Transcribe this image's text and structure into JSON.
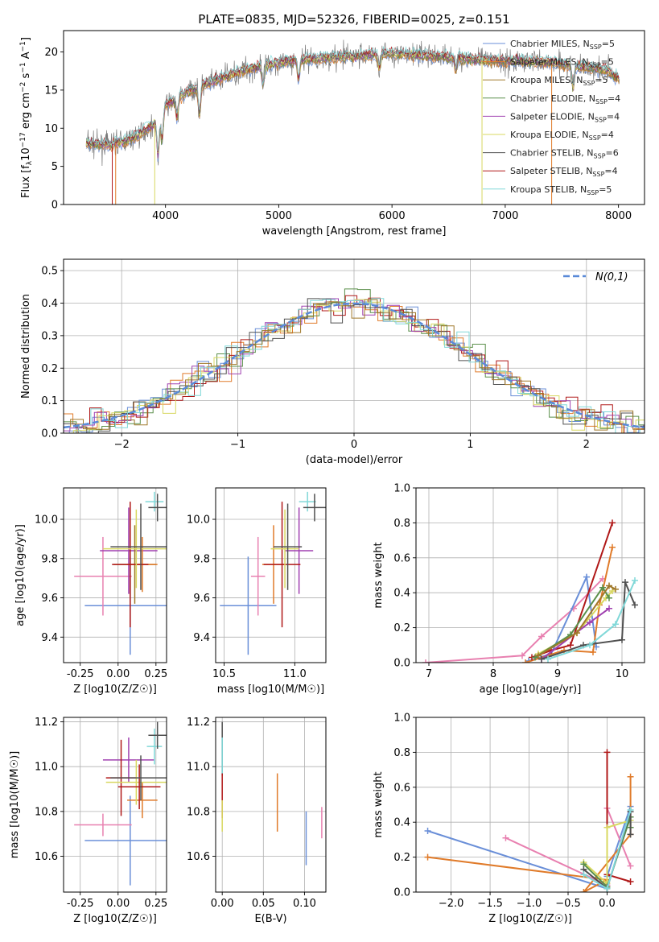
{
  "colors": [
    "#6a8fd8",
    "#e07b2a",
    "#a0782a",
    "#5a8f4a",
    "#a040b0",
    "#d8d860",
    "#505050",
    "#b01818",
    "#80d8d8",
    "#e880b0",
    "#88a8e8"
  ],
  "chart_data": [
    {
      "id": "spectrum",
      "type": "line",
      "title": "PLATE=0835, MJD=52326, FIBERID=0025, z=0.151",
      "xlabel": "wavelength [Angstrom, rest frame]",
      "ylabel": "Flux [f_λ 10^-17 erg cm^-2 s^-1 A^-1]",
      "xlim": [
        3100,
        8230
      ],
      "ylim": [
        0,
        22.8
      ],
      "xticks": [
        4000,
        5000,
        6000,
        7000,
        8000
      ],
      "yticks": [
        0,
        5,
        10,
        15,
        20
      ],
      "grid": false,
      "legend_position": "top-right",
      "series": [
        {
          "name": "Chabrier MILES, N_SSP=5",
          "color": "#6a8fd8"
        },
        {
          "name": "Salpeter MILES, N_SSP=5",
          "color": "#e07b2a"
        },
        {
          "name": "Kroupa MILES, N_SSP=5",
          "color": "#a0782a"
        },
        {
          "name": "Chabrier ELODIE, N_SSP=4",
          "color": "#5a8f4a"
        },
        {
          "name": "Salpeter ELODIE, N_SSP=4",
          "color": "#a040b0"
        },
        {
          "name": "Kroupa ELODIE, N_SSP=4",
          "color": "#d8d860"
        },
        {
          "name": "Chabrier STELIB, N_SSP=6",
          "color": "#505050"
        },
        {
          "name": "Salpeter STELIB, N_SSP=4",
          "color": "#b01818"
        },
        {
          "name": "Kroupa STELIB, N_SSP=5",
          "color": "#80d8d8"
        }
      ],
      "continuum": {
        "x": [
          3300,
          3500,
          3700,
          3900,
          4000,
          4200,
          4400,
          4600,
          4800,
          5000,
          5200,
          5500,
          5800,
          6000,
          6300,
          6600,
          6900,
          7200,
          7500,
          7700,
          7900,
          8000
        ],
        "y": [
          8.0,
          7.8,
          8.6,
          10.5,
          13.0,
          14.8,
          16.0,
          17.2,
          18.0,
          18.6,
          19.0,
          19.3,
          19.6,
          19.8,
          19.5,
          19.2,
          18.8,
          18.8,
          18.5,
          18.0,
          17.6,
          16.5
        ]
      }
    },
    {
      "id": "residuals",
      "type": "step",
      "xlabel": "(data-model)/error",
      "ylabel": "Normed distribution",
      "xlim": [
        -2.5,
        2.5
      ],
      "ylim": [
        0,
        0.535
      ],
      "xticks": [
        -2,
        -1,
        0,
        1,
        2
      ],
      "yticks": [
        0.0,
        0.1,
        0.2,
        0.3,
        0.4,
        0.5
      ],
      "grid": true,
      "legend": "N(0,1)",
      "legend_position": "top-right"
    },
    {
      "id": "age_vs_Z",
      "type": "scatter",
      "xlabel": "Z [log10(Z/Z☉)]",
      "ylabel": "age  [log10(age/yr)]",
      "xlim": [
        -0.36,
        0.32
      ],
      "ylim": [
        9.27,
        10.16
      ],
      "xticks": [
        -0.25,
        0.0,
        0.25
      ],
      "yticks": [
        9.4,
        9.6,
        9.8,
        10.0
      ],
      "grid": true,
      "points": [
        {
          "x": 0.08,
          "y": 9.56,
          "xerr": 0.3,
          "yerr": 0.25,
          "color": "#6a8fd8"
        },
        {
          "x": -0.1,
          "y": 9.71,
          "xerr": 0.19,
          "yerr": 0.2,
          "color": "#e880b0"
        },
        {
          "x": 0.07,
          "y": 9.84,
          "xerr": 0.19,
          "yerr": 0.22,
          "color": "#a040b0"
        },
        {
          "x": 0.11,
          "y": 9.77,
          "xerr": 0.14,
          "yerr": 0.2,
          "color": "#a0782a"
        },
        {
          "x": 0.16,
          "y": 9.77,
          "xerr": 0.1,
          "yerr": 0.14,
          "color": "#e07b2a"
        },
        {
          "x": 0.08,
          "y": 9.77,
          "xerr": 0.12,
          "yerr": 0.32,
          "color": "#b01818"
        },
        {
          "x": 0.12,
          "y": 9.85,
          "xerr": 0.22,
          "yerr": 0.2,
          "color": "#d8d860"
        },
        {
          "x": 0.15,
          "y": 9.86,
          "xerr": 0.2,
          "yerr": 0.22,
          "color": "#505050"
        },
        {
          "x": 0.24,
          "y": 10.09,
          "xerr": 0.06,
          "yerr": 0.05,
          "color": "#80d8d8"
        },
        {
          "x": 0.26,
          "y": 10.06,
          "xerr": 0.06,
          "yerr": 0.07,
          "color": "#505050"
        }
      ]
    },
    {
      "id": "age_vs_mass",
      "type": "scatter",
      "xlabel": "mass [log10(M/M☉)]",
      "ylabel": "",
      "xlim": [
        10.44,
        11.22
      ],
      "ylim": [
        9.27,
        10.16
      ],
      "xticks": [
        10.5,
        11.0
      ],
      "yticks": [
        9.4,
        9.6,
        9.8,
        10.0
      ],
      "grid": true,
      "points": [
        {
          "x": 10.67,
          "y": 9.56,
          "xerr": 0.2,
          "yerr": 0.25,
          "color": "#6a8fd8"
        },
        {
          "x": 10.74,
          "y": 9.71,
          "xerr": 0.05,
          "yerr": 0.2,
          "color": "#e880b0"
        },
        {
          "x": 11.03,
          "y": 9.84,
          "xerr": 0.1,
          "yerr": 0.22,
          "color": "#a040b0"
        },
        {
          "x": 10.85,
          "y": 9.77,
          "xerr": 0.08,
          "yerr": 0.2,
          "color": "#e07b2a"
        },
        {
          "x": 10.91,
          "y": 9.77,
          "xerr": 0.13,
          "yerr": 0.32,
          "color": "#b01818"
        },
        {
          "x": 10.93,
          "y": 9.85,
          "xerr": 0.1,
          "yerr": 0.2,
          "color": "#d8d860"
        },
        {
          "x": 10.95,
          "y": 9.86,
          "xerr": 0.1,
          "yerr": 0.22,
          "color": "#505050"
        },
        {
          "x": 11.09,
          "y": 10.09,
          "xerr": 0.06,
          "yerr": 0.05,
          "color": "#80d8d8"
        },
        {
          "x": 11.14,
          "y": 10.06,
          "xerr": 0.08,
          "yerr": 0.07,
          "color": "#505050"
        }
      ]
    },
    {
      "id": "weight_vs_age",
      "type": "line",
      "xlabel": "age  [log10(age/yr)]",
      "ylabel": "mass weight",
      "xlim": [
        6.8,
        10.35
      ],
      "ylim": [
        0,
        1.0
      ],
      "xticks": [
        7,
        8,
        9,
        10
      ],
      "yticks": [
        0.0,
        0.2,
        0.4,
        0.6,
        0.8,
        1.0
      ],
      "grid": true,
      "series": [
        {
          "color": "#e880b0",
          "x": [
            6.95,
            8.45,
            8.75,
            9.25,
            9.7
          ],
          "y": [
            0.0,
            0.04,
            0.15,
            0.31,
            0.48
          ]
        },
        {
          "color": "#6a8fd8",
          "x": [
            8.55,
            8.9,
            9.45,
            9.6
          ],
          "y": [
            0.01,
            0.05,
            0.49,
            0.09
          ]
        },
        {
          "color": "#e07b2a",
          "x": [
            8.5,
            9.1,
            9.55,
            9.65,
            9.85
          ],
          "y": [
            0.0,
            0.07,
            0.06,
            0.33,
            0.66
          ]
        },
        {
          "color": "#b01818",
          "x": [
            8.6,
            8.9,
            9.2,
            9.85
          ],
          "y": [
            0.03,
            0.07,
            0.1,
            0.8
          ]
        },
        {
          "color": "#d8d860",
          "x": [
            8.7,
            9.3,
            9.75,
            9.85
          ],
          "y": [
            0.05,
            0.17,
            0.37,
            0.41
          ]
        },
        {
          "color": "#5a8f4a",
          "x": [
            8.65,
            9.2,
            9.7,
            9.8
          ],
          "y": [
            0.03,
            0.16,
            0.43,
            0.37
          ]
        },
        {
          "color": "#a040b0",
          "x": [
            8.75,
            9.5,
            9.8
          ],
          "y": [
            0.02,
            0.23,
            0.31
          ]
        },
        {
          "color": "#505050",
          "x": [
            8.75,
            9.4,
            10.0,
            10.05,
            10.2
          ],
          "y": [
            0.02,
            0.1,
            0.13,
            0.46,
            0.33
          ]
        },
        {
          "color": "#80d8d8",
          "x": [
            8.85,
            9.5,
            9.9,
            10.2
          ],
          "y": [
            0.02,
            0.1,
            0.22,
            0.47
          ]
        },
        {
          "color": "#a0782a",
          "x": [
            8.7,
            9.3,
            9.8,
            9.9
          ],
          "y": [
            0.04,
            0.17,
            0.44,
            0.42
          ]
        }
      ]
    },
    {
      "id": "mass_vs_Z",
      "type": "scatter",
      "xlabel": "Z [log10(Z/Z☉)]",
      "ylabel": "mass [log10(M/M☉)]",
      "xlim": [
        -0.36,
        0.32
      ],
      "ylim": [
        10.44,
        11.22
      ],
      "xticks": [
        -0.25,
        0.0,
        0.25
      ],
      "yticks": [
        10.6,
        10.8,
        11.0,
        11.2
      ],
      "grid": true,
      "points": [
        {
          "x": 0.08,
          "y": 10.67,
          "xerr": 0.3,
          "yerr": 0.2,
          "color": "#6a8fd8"
        },
        {
          "x": -0.1,
          "y": 10.74,
          "xerr": 0.19,
          "yerr": 0.05,
          "color": "#e880b0"
        },
        {
          "x": 0.07,
          "y": 11.03,
          "xerr": 0.17,
          "yerr": 0.1,
          "color": "#a040b0"
        },
        {
          "x": 0.16,
          "y": 10.85,
          "xerr": 0.1,
          "yerr": 0.08,
          "color": "#e07b2a"
        },
        {
          "x": 0.02,
          "y": 10.95,
          "xerr": 0.1,
          "yerr": 0.17,
          "color": "#b01818"
        },
        {
          "x": 0.12,
          "y": 10.93,
          "xerr": 0.2,
          "yerr": 0.1,
          "color": "#d8d860"
        },
        {
          "x": 0.14,
          "y": 10.91,
          "xerr": 0.14,
          "yerr": 0.1,
          "color": "#b01818"
        },
        {
          "x": 0.15,
          "y": 10.95,
          "xerr": 0.2,
          "yerr": 0.1,
          "color": "#505050"
        },
        {
          "x": 0.24,
          "y": 11.09,
          "xerr": 0.05,
          "yerr": 0.08,
          "color": "#80d8d8"
        },
        {
          "x": 0.26,
          "y": 11.14,
          "xerr": 0.06,
          "yerr": 0.06,
          "color": "#505050"
        }
      ]
    },
    {
      "id": "mass_vs_EBV",
      "type": "scatter",
      "xlabel": "E(B-V)",
      "ylabel": "",
      "xlim": [
        -0.008,
        0.126
      ],
      "ylim": [
        10.44,
        11.22
      ],
      "xticks": [
        0.0,
        0.05,
        0.1
      ],
      "yticks": [
        10.6,
        10.8,
        11.0,
        11.2
      ],
      "grid": true,
      "points": [
        {
          "x": 0.0,
          "y": 11.08,
          "xerr": 0,
          "yerr": 0.12,
          "color": "#505050"
        },
        {
          "x": 0.0,
          "y": 10.87,
          "xerr": 0,
          "yerr": 0.1,
          "color": "#b01818"
        },
        {
          "x": 0.0,
          "y": 10.78,
          "xerr": 0,
          "yerr": 0.07,
          "color": "#d8d860"
        },
        {
          "x": 0.0,
          "y": 11.05,
          "xerr": 0,
          "yerr": 0.08,
          "color": "#80d8d8"
        },
        {
          "x": 0.067,
          "y": 10.84,
          "xerr": 0,
          "yerr": 0.13,
          "color": "#e07b2a"
        },
        {
          "x": 0.102,
          "y": 10.68,
          "xerr": 0,
          "yerr": 0.12,
          "color": "#6a8fd8"
        },
        {
          "x": 0.121,
          "y": 10.75,
          "xerr": 0,
          "yerr": 0.07,
          "color": "#e880b0"
        }
      ]
    },
    {
      "id": "weight_vs_Z",
      "type": "line",
      "xlabel": "Z [log10(Z/Z☉)]",
      "ylabel": "mass weight",
      "xlim": [
        -2.45,
        0.48
      ],
      "ylim": [
        0,
        1.0
      ],
      "xticks": [
        -2.0,
        -1.5,
        -1.0,
        -0.5,
        0.0
      ],
      "yticks": [
        0.0,
        0.2,
        0.4,
        0.6,
        0.8,
        1.0
      ],
      "grid": true,
      "series": [
        {
          "color": "#6a8fd8",
          "x": [
            -2.3,
            0.0,
            0.0,
            0.3
          ],
          "y": [
            0.35,
            0.02,
            0.09,
            0.49
          ]
        },
        {
          "color": "#e07b2a",
          "x": [
            -2.3,
            0.0,
            -0.3,
            0.3,
            0.3
          ],
          "y": [
            0.2,
            0.07,
            0.0,
            0.33,
            0.66
          ]
        },
        {
          "color": "#e880b0",
          "x": [
            -1.3,
            0.0,
            0.0,
            0.3
          ],
          "y": [
            0.31,
            0.04,
            0.48,
            0.15
          ]
        },
        {
          "color": "#b01818",
          "x": [
            0.0,
            0.0,
            0.0,
            0.3
          ],
          "y": [
            0.02,
            0.8,
            0.1,
            0.06
          ]
        },
        {
          "color": "#d8d860",
          "x": [
            -0.3,
            0.0,
            0.0,
            0.3
          ],
          "y": [
            0.17,
            0.05,
            0.37,
            0.41
          ]
        },
        {
          "color": "#5a8f4a",
          "x": [
            -0.3,
            0.0,
            0.3,
            0.3
          ],
          "y": [
            0.16,
            0.03,
            0.43,
            0.37
          ]
        },
        {
          "color": "#505050",
          "x": [
            -0.3,
            0.0,
            0.3,
            0.3
          ],
          "y": [
            0.13,
            0.02,
            0.46,
            0.33
          ]
        },
        {
          "color": "#80d8d8",
          "x": [
            -0.3,
            0.0,
            0.3
          ],
          "y": [
            0.1,
            0.02,
            0.47
          ]
        }
      ]
    }
  ]
}
